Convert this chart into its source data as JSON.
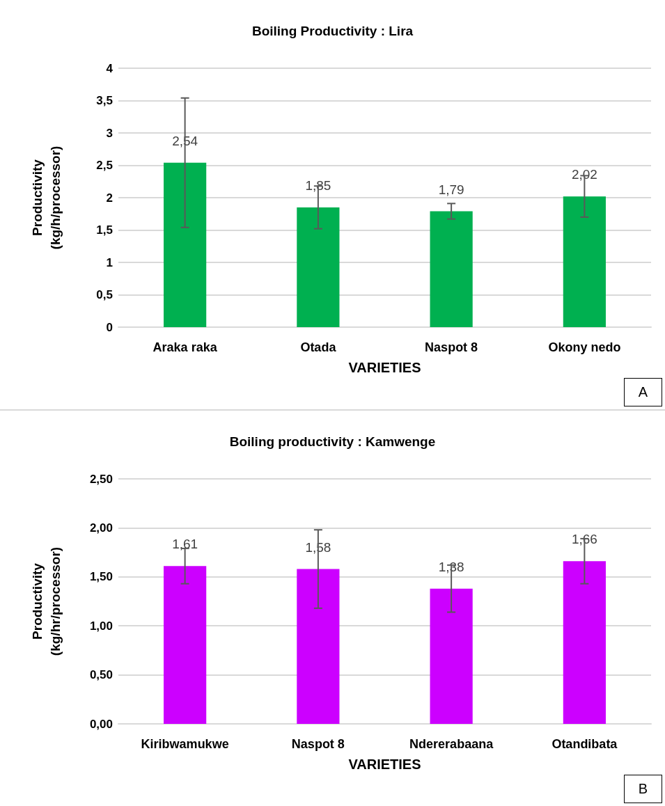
{
  "chart_data": [
    {
      "type": "bar",
      "title": "Boiling Productivity : Lira",
      "xlabel": "VARIETIES",
      "ylabel": "Productivity\n(kg/h/processor)",
      "categories": [
        "Araka raka",
        "Otada",
        "Naspot 8",
        "Okony nedo"
      ],
      "series": [
        {
          "color": "#00b050",
          "values": [
            2.54,
            1.85,
            1.79,
            2.02
          ],
          "errors": [
            1.0,
            0.33,
            0.12,
            0.32
          ],
          "value_labels": [
            "2,54",
            "1,85",
            "1,79",
            "2,02"
          ]
        }
      ],
      "ylim": [
        0,
        4
      ],
      "yticks": [
        0,
        {
          "value": 0.5,
          "label": "0,5"
        },
        1,
        {
          "value": 1.5,
          "label": "1,5"
        },
        2,
        {
          "value": 2.5,
          "label": "2,5"
        },
        3,
        {
          "value": 3.5,
          "label": "3,5"
        },
        4
      ],
      "grid": "y",
      "annotations": [
        "A"
      ]
    },
    {
      "type": "bar",
      "title": "Boiling productivity : Kamwenge",
      "xlabel": "VARIETIES",
      "ylabel": "Productivity\n(kg/hr/processor)",
      "categories": [
        "Kiribwamukwe",
        "Naspot 8",
        "Ndererabaana",
        "Otandibata"
      ],
      "series": [
        {
          "color": "#cc00ff",
          "values": [
            1.61,
            1.58,
            1.38,
            1.66
          ],
          "errors": [
            0.18,
            0.4,
            0.24,
            0.23
          ],
          "value_labels": [
            "1,61",
            "1,58",
            "1,38",
            "1,66"
          ]
        }
      ],
      "ylim": [
        0,
        2.5
      ],
      "yticks": [
        {
          "value": 0,
          "label": "0,00"
        },
        {
          "value": 0.5,
          "label": "0,50"
        },
        {
          "value": 1,
          "label": "1,00"
        },
        {
          "value": 1.5,
          "label": "1,50"
        },
        {
          "value": 2,
          "label": "2,00"
        },
        {
          "value": 2.5,
          "label": "2,50"
        }
      ],
      "grid": "y",
      "annotations": [
        "B"
      ]
    }
  ]
}
